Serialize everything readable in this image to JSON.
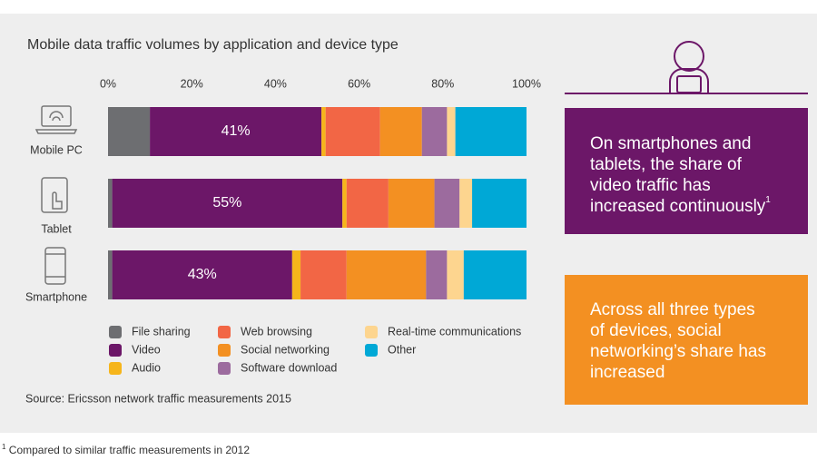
{
  "chart_data": {
    "type": "stacked-bar-horizontal",
    "title": "Mobile data traffic volumes by application and device type",
    "categories": [
      "Mobile PC",
      "Tablet",
      "Smartphone"
    ],
    "series": [
      {
        "name": "File sharing",
        "color": "#6d6e71",
        "values": [
          10,
          1,
          1
        ]
      },
      {
        "name": "Video",
        "color": "#6c1768",
        "values": [
          41,
          55,
          43
        ],
        "value_labels": [
          "41%",
          "55%",
          "43%"
        ]
      },
      {
        "name": "Audio",
        "color": "#f6b51b",
        "values": [
          1,
          1,
          2
        ]
      },
      {
        "name": "Web browsing",
        "color": "#f26645",
        "values": [
          13,
          10,
          11
        ]
      },
      {
        "name": "Social networking",
        "color": "#f39022",
        "values": [
          10,
          11,
          19
        ]
      },
      {
        "name": "Software download",
        "color": "#9c6b9e",
        "values": [
          6,
          6,
          5
        ]
      },
      {
        "name": "Real-time communications",
        "color": "#fdd58f",
        "values": [
          2,
          3,
          4
        ]
      },
      {
        "name": "Other",
        "color": "#00a8d6",
        "values": [
          17,
          13,
          15
        ]
      }
    ],
    "xlim": [
      0,
      100
    ],
    "xticks": [
      {
        "value": 0,
        "label": "0%"
      },
      {
        "value": 20,
        "label": "20%"
      },
      {
        "value": 40,
        "label": "40%"
      },
      {
        "value": 60,
        "label": "60%"
      },
      {
        "value": 80,
        "label": "80%"
      },
      {
        "value": 100,
        "label": "100%"
      }
    ],
    "source": "Source: Ericsson network traffic measurements 2015",
    "annotations": [
      {
        "text": "On smartphones and tablets, the share of video traffic has increased continuously",
        "note": "1"
      },
      {
        "text": "Across all three types of devices, social networking’s share has increased"
      }
    ],
    "footnote": {
      "mark": "1",
      "text": "Compared to similar traffic measurements in 2012"
    }
  }
}
